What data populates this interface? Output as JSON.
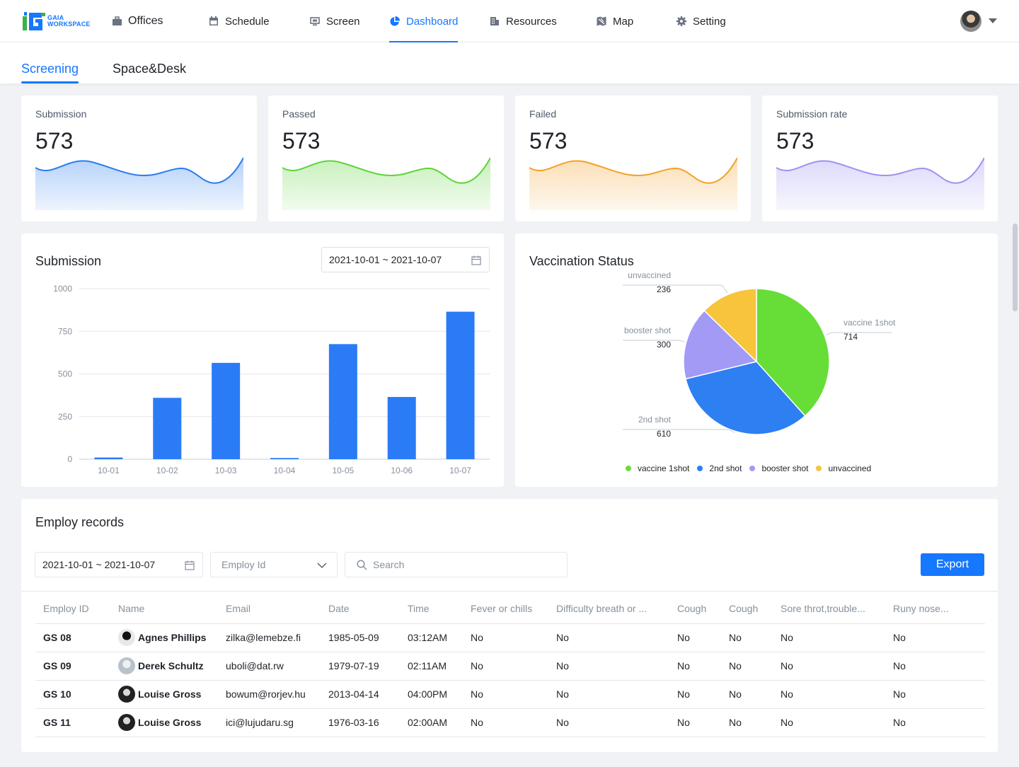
{
  "brand": {
    "logo_text_1": "GAIA",
    "logo_text_2": "WORKSPACE"
  },
  "nav": [
    {
      "label": "Offices",
      "icon": "briefcase-icon"
    },
    {
      "label": "Schedule",
      "icon": "calendar-icon"
    },
    {
      "label": "Screen",
      "icon": "monitor-icon"
    },
    {
      "label": "Dashboard",
      "icon": "pie-chart-icon",
      "active": true
    },
    {
      "label": "Resources",
      "icon": "building-icon"
    },
    {
      "label": "Map",
      "icon": "map-icon"
    },
    {
      "label": "Setting",
      "icon": "gear-icon"
    }
  ],
  "tabs": [
    {
      "label": "Screening",
      "active": true
    },
    {
      "label": "Space&Desk"
    }
  ],
  "stats": [
    {
      "label": "Submission",
      "value": "573",
      "color": "#2b7cf0"
    },
    {
      "label": "Passed",
      "value": "573",
      "color": "#5ed43a"
    },
    {
      "label": "Failed",
      "value": "573",
      "color": "#f2a22a"
    },
    {
      "label": "Submission rate",
      "value": "573",
      "color": "#9c93f0"
    }
  ],
  "submission": {
    "title": "Submission",
    "date_range": "2021-10-01 ~ 2021-10-07"
  },
  "vaccination": {
    "title": "Vaccination Status"
  },
  "chart_data": [
    {
      "type": "bar",
      "title": "Submission",
      "categories": [
        "10-01",
        "10-02",
        "10-03",
        "10-04",
        "10-05",
        "10-06",
        "10-07"
      ],
      "values": [
        10,
        360,
        565,
        7,
        675,
        365,
        865
      ],
      "ylim": [
        0,
        1000
      ],
      "yticks": [
        0,
        250,
        500,
        750,
        1000
      ],
      "color": "#2b7bf6",
      "grid": true
    },
    {
      "type": "pie",
      "title": "Vaccination Status",
      "slices": [
        {
          "name": "vaccine 1shot",
          "value": 714,
          "color": "#67dd38"
        },
        {
          "name": "2nd shot",
          "value": 610,
          "color": "#2d7ff2"
        },
        {
          "name": "booster shot",
          "value": 300,
          "color": "#a29af5"
        },
        {
          "name": "unvaccined",
          "value": 236,
          "color": "#f7c43b"
        }
      ],
      "legend": "bottom"
    }
  ],
  "records": {
    "title": "Employ records",
    "date_range": "2021-10-01 ~ 2021-10-07",
    "employ_id_placeholder": "Employ Id",
    "search_placeholder": "Search",
    "export_label": "Export",
    "columns": [
      "Employ ID",
      "Name",
      "Email",
      "Date",
      "Time",
      "Fever or chills",
      "Difficulty breath or ...",
      "Cough",
      "Cough",
      "Sore throt,trouble...",
      "Runy nose..."
    ],
    "rows": [
      {
        "id": "GS 08",
        "name": "Agnes Phillips",
        "email": "zilka@lemebze.fi",
        "date": "1985-05-09",
        "time": "03:12AM",
        "fever": "No",
        "breath": "No",
        "cough1": "No",
        "cough2": "No",
        "sore": "No",
        "runny": "No"
      },
      {
        "id": "GS 09",
        "name": "Derek Schultz",
        "email": "uboli@dat.rw",
        "date": "1979-07-19",
        "time": "02:11AM",
        "fever": "No",
        "breath": "No",
        "cough1": "No",
        "cough2": "No",
        "sore": "No",
        "runny": "No"
      },
      {
        "id": "GS 10",
        "name": "Louise Gross",
        "email": "bowum@rorjev.hu",
        "date": "2013-04-14",
        "time": "04:00PM",
        "fever": "No",
        "breath": "No",
        "cough1": "No",
        "cough2": "No",
        "sore": "No",
        "runny": "No"
      },
      {
        "id": "GS 11",
        "name": "Louise Gross",
        "email": "ici@lujudaru.sg",
        "date": "1976-03-16",
        "time": "02:00AM",
        "fever": "No",
        "breath": "No",
        "cough1": "No",
        "cough2": "No",
        "sore": "No",
        "runny": "No"
      }
    ]
  }
}
